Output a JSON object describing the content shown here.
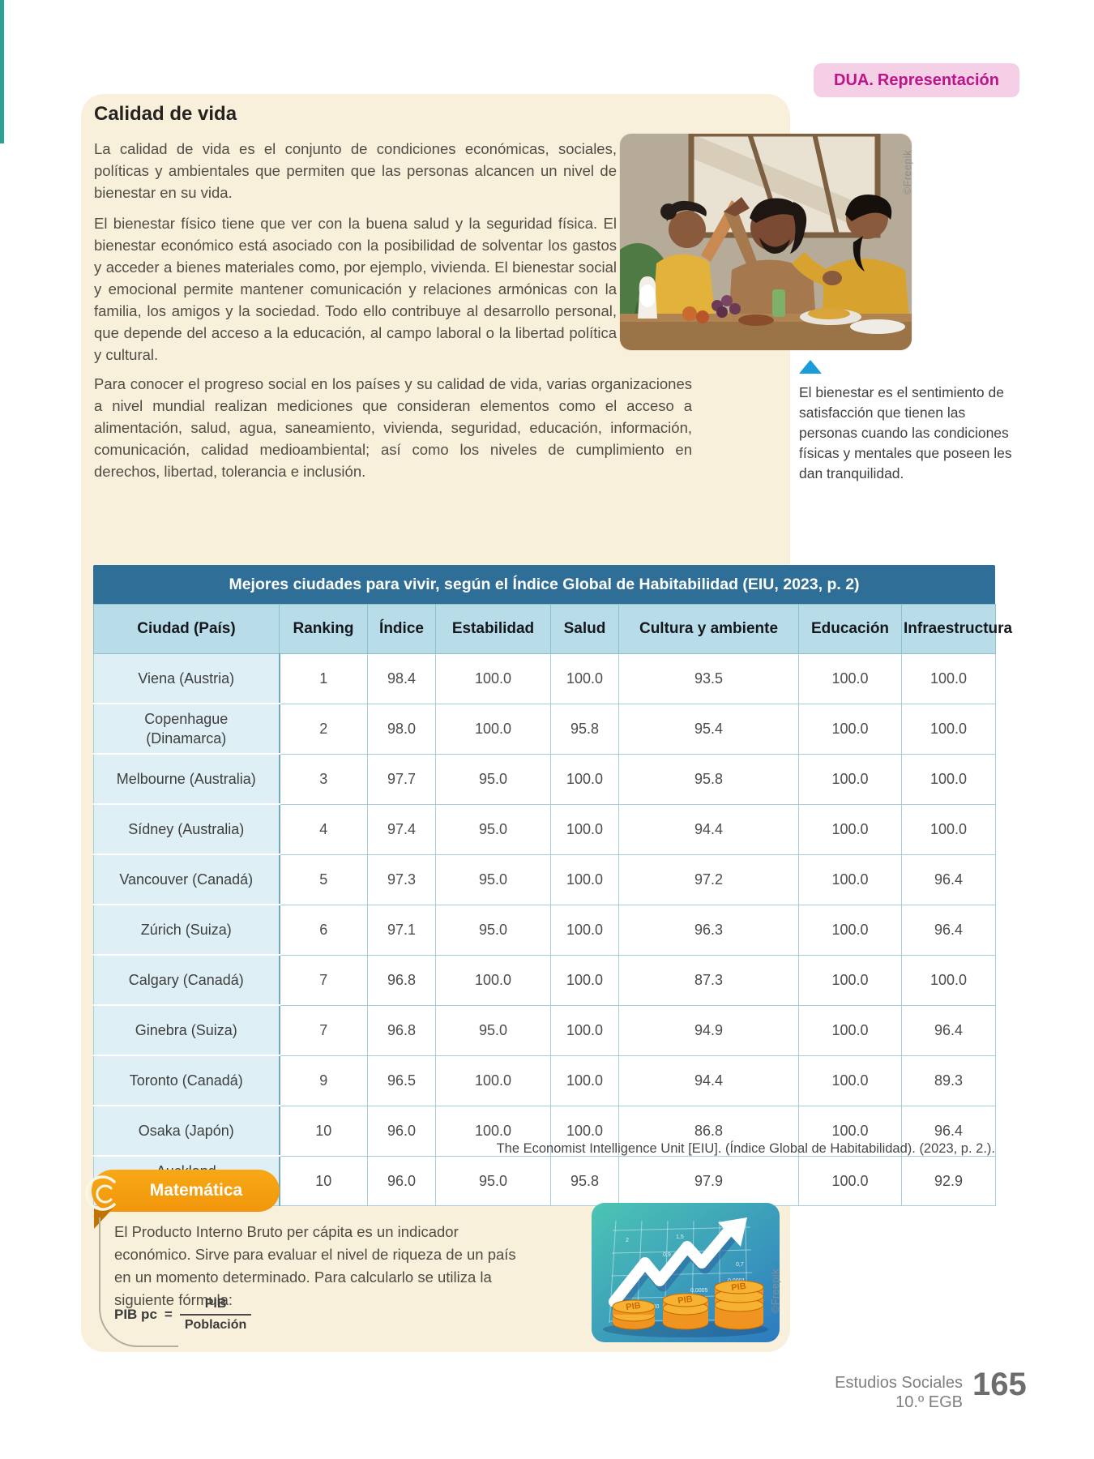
{
  "header": {
    "badge_prefix": "DUA.",
    "badge_rest": "Representación"
  },
  "article": {
    "title": "Calidad de vida",
    "paragraphs": [
      "La calidad de vida es el conjunto de condiciones económicas, sociales, políticas y ambientales que permiten que las personas alcancen un nivel de bienestar en su vida.",
      "El bienestar físico tiene que ver con la buena salud y la seguridad física. El bienestar económico está asociado con la posibilidad de solventar los gastos y acceder a bienes materiales como, por ejemplo, vivienda. El bienestar social y emocional permite mantener comunicación y relaciones armónicas con la familia, los amigos y la sociedad. Todo ello contribuye al desarrollo personal, que depende del acceso a la educación, al campo laboral o la libertad política y cultural.",
      "Para conocer el progreso social en los países y su calidad de vida, varias organizaciones a nivel mundial realizan mediciones que consideran elementos como el acceso a alimentación, salud, agua, saneamiento, vivienda, seguridad, educación, información, comunicación, calidad medioambiental; así como los niveles de cumplimiento en derechos, libertad, tolerancia e inclusión."
    ],
    "caption": "El bienestar es el sentimiento de satisfacción que tienen las personas cuando las condiciones físicas y mentales que poseen les dan tranquilidad.",
    "photo_credit": "©Freepik"
  },
  "table": {
    "title": "Mejores ciudades para vivir, según el Índice Global de Habitabilidad (EIU, 2023, p. 2)",
    "columns": [
      "Ciudad (País)",
      "Ranking",
      "Índice",
      "Estabilidad",
      "Salud",
      "Cultura y ambiente",
      "Educación",
      "Infraestructura"
    ],
    "rows": [
      [
        "Viena (Austria)",
        "1",
        "98.4",
        "100.0",
        "100.0",
        "93.5",
        "100.0",
        "100.0"
      ],
      [
        "Copenhague\n(Dinamarca)",
        "2",
        "98.0",
        "100.0",
        "95.8",
        "95.4",
        "100.0",
        "100.0"
      ],
      [
        "Melbourne (Australia)",
        "3",
        "97.7",
        "95.0",
        "100.0",
        "95.8",
        "100.0",
        "100.0"
      ],
      [
        "Sídney (Australia)",
        "4",
        "97.4",
        "95.0",
        "100.0",
        "94.4",
        "100.0",
        "100.0"
      ],
      [
        "Vancouver (Canadá)",
        "5",
        "97.3",
        "95.0",
        "100.0",
        "97.2",
        "100.0",
        "96.4"
      ],
      [
        "Zúrich (Suiza)",
        "6",
        "97.1",
        "95.0",
        "100.0",
        "96.3",
        "100.0",
        "96.4"
      ],
      [
        "Calgary (Canadá)",
        "7",
        "96.8",
        "100.0",
        "100.0",
        "87.3",
        "100.0",
        "100.0"
      ],
      [
        "Ginebra (Suiza)",
        "7",
        "96.8",
        "95.0",
        "100.0",
        "94.9",
        "100.0",
        "96.4"
      ],
      [
        "Toronto (Canadá)",
        "9",
        "96.5",
        "100.0",
        "100.0",
        "94.4",
        "100.0",
        "89.3"
      ],
      [
        "Osaka (Japón)",
        "10",
        "96.0",
        "100.0",
        "100.0",
        "86.8",
        "100.0",
        "96.4"
      ],
      [
        "Auckland\n(Nueva Zelanda)",
        "10",
        "96.0",
        "95.0",
        "95.8",
        "97.9",
        "100.0",
        "92.9"
      ]
    ],
    "source": "The Economist Intelligence Unit [EIU]. (Índice Global de Habitabilidad). (2023, p. 2.)."
  },
  "mat": {
    "badge": "Matemática",
    "text": "El Producto Interno Bruto per cápita es un indicador económico. Sirve para evaluar el nivel de riqueza de un país en un momento determinado. Para calcularlo se utiliza la siguiente fórmula:",
    "formula_lhs": "PIB pc",
    "formula_eq": "=",
    "numerator": "PIB",
    "denominator": "Población",
    "illustration": {
      "labels": [
        "2",
        "1,5",
        "0,9",
        "1",
        "0,7",
        "0,0001",
        "0,0005",
        "0,0280"
      ],
      "coin_label": "PIB"
    },
    "credit": "©Freepik"
  },
  "footer": {
    "course": "Estudios Sociales",
    "grade": "10.º EGB",
    "page": "165"
  },
  "colors": {
    "accent_pink": "#bb1588",
    "table_title_blue": "#2f6e96",
    "table_header_blue": "#b9dde8",
    "city_cell_blue": "#def0f5",
    "panel_beige": "#f9f0dc",
    "orange": "#f59e0f",
    "teal_edge": "#2ba292",
    "caption_blue": "#199cd9"
  }
}
